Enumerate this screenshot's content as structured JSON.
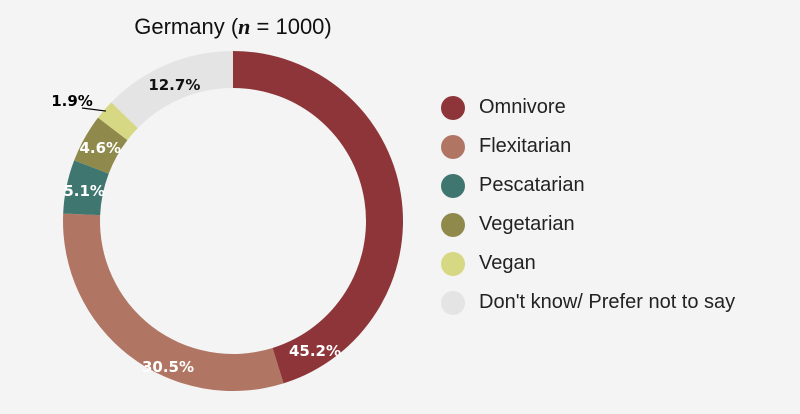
{
  "chart_data": {
    "type": "pie",
    "donut": true,
    "title_prefix": "Germany (",
    "title_n": "n",
    "title_suffix": " = 1000)",
    "legend_position": "right",
    "slices": [
      {
        "name": "Omnivore",
        "value": 45.2,
        "label": "45.2%",
        "color": "#8e3539"
      },
      {
        "name": "Flexitarian",
        "value": 30.5,
        "label": "30.5%",
        "color": "#b07563"
      },
      {
        "name": "Pescatarian",
        "value": 5.1,
        "label": "5.1%",
        "color": "#3f7670"
      },
      {
        "name": "Vegetarian",
        "value": 4.6,
        "label": "4.6%",
        "color": "#8f8a4c"
      },
      {
        "name": "Vegan",
        "value": 1.9,
        "label": "1.9%",
        "color": "#d6d884"
      },
      {
        "name": "Don't know/ Prefer not to say",
        "value": 12.7,
        "label": "12.7%",
        "color": "#e4e4e4"
      }
    ]
  }
}
